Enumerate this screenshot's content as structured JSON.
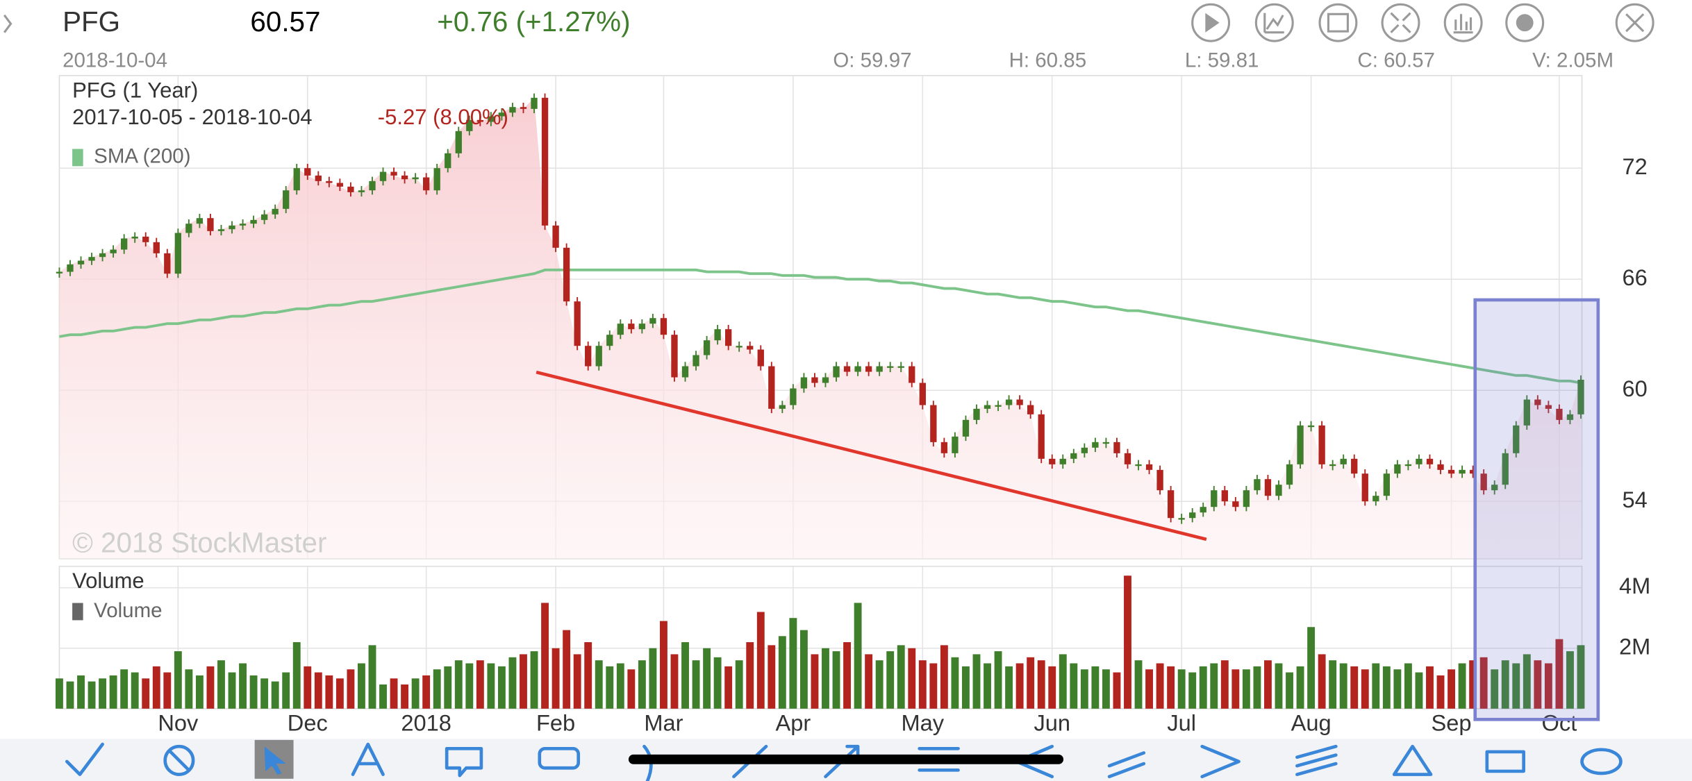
{
  "header": {
    "symbol": "PFG",
    "price": "60.57",
    "change": "+0.76 (+1.27%)",
    "date": "2018-10-04",
    "open": "O: 59.97",
    "high": "H: 60.85",
    "low": "L: 59.81",
    "close": "C: 60.57",
    "volume": "V: 2.05M"
  },
  "chart_data": {
    "type": "candlestick",
    "title": "PFG (1 Year)",
    "subtitle": "2017-10-05 - 2018-10-04",
    "change_label": "-5.27 (8.00%)",
    "watermark": "© 2018 StockMaster",
    "categories": [
      null,
      null,
      null,
      null,
      null,
      null,
      null,
      null,
      null,
      null,
      null,
      "Nov",
      null,
      null,
      null,
      null,
      null,
      null,
      null,
      null,
      null,
      null,
      null,
      "Dec",
      null,
      null,
      null,
      null,
      null,
      null,
      null,
      null,
      null,
      null,
      "2018",
      null,
      null,
      null,
      null,
      null,
      null,
      null,
      null,
      null,
      null,
      null,
      "Feb",
      null,
      null,
      null,
      null,
      null,
      null,
      null,
      null,
      null,
      "Mar",
      null,
      null,
      null,
      null,
      null,
      null,
      null,
      null,
      null,
      null,
      null,
      "Apr",
      null,
      null,
      null,
      null,
      null,
      null,
      null,
      null,
      null,
      null,
      null,
      "May",
      null,
      null,
      null,
      null,
      null,
      null,
      null,
      null,
      null,
      null,
      null,
      "Jun",
      null,
      null,
      null,
      null,
      null,
      null,
      null,
      null,
      null,
      null,
      null,
      "Jul",
      null,
      null,
      null,
      null,
      null,
      null,
      null,
      null,
      null,
      null,
      null,
      "Aug",
      null,
      null,
      null,
      null,
      null,
      null,
      null,
      null,
      null,
      null,
      null,
      null,
      "Sep",
      null,
      null,
      null,
      null,
      null,
      null,
      null,
      null,
      null,
      "Oct",
      null,
      null
    ],
    "up_color": "#3f7f2b",
    "down_color": "#b3241f",
    "series": [
      {
        "values": [
          66.4,
          66.8,
          67.0,
          67.2,
          67.4,
          67.6,
          68.2,
          68.3,
          68.0,
          67.4,
          66.3,
          68.5,
          69.0,
          69.3,
          68.6,
          68.7,
          68.9,
          69.0,
          69.2,
          69.5,
          69.8,
          70.8,
          72.0,
          71.6,
          71.3,
          71.2,
          71.0,
          70.7,
          70.8,
          71.3,
          71.8,
          71.6,
          71.4,
          71.5,
          70.8,
          72.0,
          72.8,
          74.0,
          74.6,
          74.5,
          74.8,
          75.0,
          75.3,
          75.2,
          75.8,
          68.9,
          67.7,
          64.8,
          62.4,
          61.3,
          62.4,
          63.0,
          63.6,
          63.3,
          63.6,
          63.9,
          63.0,
          60.7,
          61.3,
          61.9,
          62.7,
          63.3,
          62.4,
          62.4,
          62.2,
          61.3,
          59.0,
          59.2,
          60.1,
          60.7,
          60.4,
          60.7,
          61.3,
          61.0,
          61.3,
          61.0,
          61.3,
          61.3,
          61.3,
          60.4,
          59.2,
          57.2,
          56.6,
          57.5,
          58.4,
          59.0,
          59.2,
          59.2,
          59.5,
          59.2,
          58.7,
          56.3,
          56.0,
          56.3,
          56.6,
          56.9,
          57.2,
          57.2,
          56.6,
          56.0,
          56.0,
          55.7,
          54.6,
          53.1,
          53.1,
          53.4,
          53.7,
          54.6,
          54.0,
          53.7,
          54.6,
          55.2,
          54.3,
          54.9,
          56.0,
          58.1,
          58.1,
          56.0,
          56.0,
          56.3,
          55.5,
          54.0,
          54.3,
          55.5,
          56.0,
          56.0,
          56.3,
          56.0,
          55.7,
          55.5,
          55.7,
          55.5,
          54.6,
          54.9,
          56.6,
          58.1,
          59.5,
          59.2,
          59.0,
          58.4,
          58.7,
          60.57
        ]
      },
      {
        "name": "SMA (200)",
        "color": "#7cc48a",
        "values": [
          62.9,
          63.0,
          63.0,
          63.1,
          63.2,
          63.2,
          63.3,
          63.4,
          63.4,
          63.5,
          63.6,
          63.6,
          63.7,
          63.8,
          63.8,
          63.9,
          64.0,
          64.0,
          64.1,
          64.2,
          64.2,
          64.3,
          64.4,
          64.4,
          64.5,
          64.6,
          64.6,
          64.7,
          64.8,
          64.8,
          64.9,
          65.0,
          65.1,
          65.2,
          65.3,
          65.4,
          65.5,
          65.6,
          65.7,
          65.8,
          65.9,
          66.0,
          66.1,
          66.2,
          66.3,
          66.5,
          66.5,
          66.5,
          66.5,
          66.5,
          66.5,
          66.5,
          66.5,
          66.5,
          66.5,
          66.5,
          66.5,
          66.5,
          66.5,
          66.5,
          66.4,
          66.4,
          66.4,
          66.4,
          66.3,
          66.3,
          66.3,
          66.2,
          66.2,
          66.2,
          66.1,
          66.1,
          66.1,
          66.0,
          66.0,
          66.0,
          65.9,
          65.9,
          65.8,
          65.8,
          65.7,
          65.6,
          65.5,
          65.5,
          65.4,
          65.3,
          65.2,
          65.2,
          65.1,
          65.0,
          65.0,
          64.9,
          64.8,
          64.8,
          64.7,
          64.6,
          64.5,
          64.5,
          64.4,
          64.3,
          64.3,
          64.2,
          64.1,
          64.0,
          63.9,
          63.8,
          63.7,
          63.6,
          63.5,
          63.4,
          63.3,
          63.2,
          63.1,
          63.0,
          62.9,
          62.8,
          62.7,
          62.6,
          62.5,
          62.4,
          62.3,
          62.2,
          62.1,
          62.0,
          61.9,
          61.8,
          61.7,
          61.6,
          61.5,
          61.4,
          61.3,
          61.2,
          61.1,
          61.0,
          60.9,
          60.8,
          60.8,
          60.7,
          60.6,
          60.5,
          60.5,
          60.4
        ]
      }
    ],
    "ylim": [
      50.9,
      77.0
    ],
    "yticks": [
      54,
      60,
      66,
      72
    ],
    "grid": true,
    "volume": {
      "title": "Volume",
      "series_name": "Volume",
      "color": "#666666",
      "values": [
        1.0,
        0.9,
        1.1,
        0.9,
        1.0,
        1.1,
        1.3,
        1.2,
        1.0,
        1.4,
        1.2,
        1.9,
        1.3,
        1.1,
        1.4,
        1.6,
        1.2,
        1.5,
        1.1,
        1.0,
        0.9,
        1.2,
        2.2,
        1.4,
        1.2,
        1.1,
        1.0,
        1.3,
        1.5,
        2.1,
        0.8,
        1.0,
        0.8,
        1.0,
        1.1,
        1.3,
        1.4,
        1.6,
        1.5,
        1.6,
        1.5,
        1.4,
        1.7,
        1.8,
        1.9,
        3.5,
        2.0,
        2.6,
        1.8,
        2.2,
        1.6,
        1.4,
        1.5,
        1.3,
        1.6,
        2.0,
        2.9,
        1.8,
        2.2,
        1.6,
        2.0,
        1.7,
        1.4,
        1.6,
        2.2,
        3.2,
        2.1,
        2.4,
        3.0,
        2.6,
        1.8,
        2.0,
        1.9,
        2.2,
        3.5,
        1.8,
        1.6,
        1.9,
        2.1,
        2.0,
        1.6,
        1.5,
        2.1,
        1.7,
        1.4,
        1.8,
        1.5,
        1.9,
        1.4,
        1.5,
        1.7,
        1.6,
        1.4,
        1.8,
        1.5,
        1.3,
        1.4,
        1.3,
        1.2,
        4.4,
        1.6,
        1.3,
        1.5,
        1.4,
        1.3,
        1.2,
        1.4,
        1.5,
        1.6,
        1.3,
        1.3,
        1.4,
        1.6,
        1.5,
        1.2,
        1.4,
        2.7,
        1.8,
        1.6,
        1.5,
        1.4,
        1.3,
        1.5,
        1.4,
        1.3,
        1.5,
        1.2,
        1.4,
        1.1,
        1.3,
        1.5,
        1.6,
        1.7,
        1.3,
        1.6,
        1.5,
        1.8,
        1.6,
        1.5,
        2.3,
        1.9,
        2.1
      ],
      "ylim": [
        0,
        4.71
      ],
      "yticks": [
        {
          "value": 2,
          "label": "2M"
        },
        {
          "value": 4,
          "label": "4M"
        }
      ]
    }
  }
}
